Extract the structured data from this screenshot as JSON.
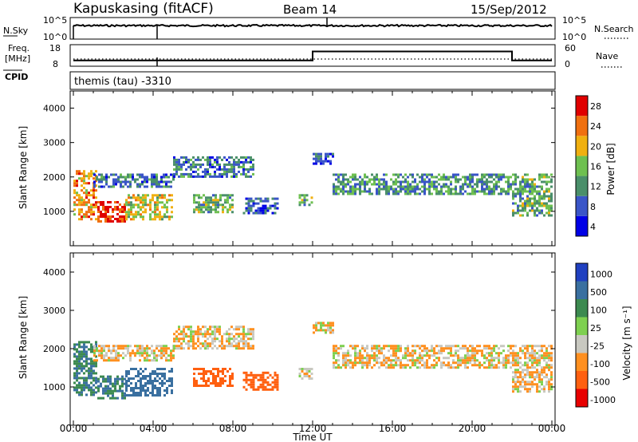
{
  "header": {
    "station": "Kapuskasing (fitACF)",
    "beam": "Beam 14",
    "date": "15/Sep/2012"
  },
  "top_panels": {
    "nsky_label": "N.Sky",
    "nsky_ticks": [
      "10^5",
      "10^0"
    ],
    "nsearch_label": "N.Search",
    "nsearch_ticks": [
      "10^5",
      "10^0"
    ],
    "freq_label_1": "Freq.",
    "freq_label_2": "[MHz]",
    "freq_ticks": [
      "18",
      "8"
    ],
    "nave_label": "Nave",
    "nave_ticks": [
      "60",
      "0"
    ],
    "cpid_label": "CPID",
    "cpid_value": "themis (tau) -3310"
  },
  "x_axis": {
    "label": "Time UT",
    "ticks": [
      "00:00",
      "04:00",
      "08:00",
      "12:00",
      "16:00",
      "20:00",
      "00:00"
    ]
  },
  "power_panel": {
    "ylabel": "Slant Range [km]",
    "yticks": [
      "4000",
      "3000",
      "2000",
      "1000"
    ],
    "colorbar_label": "Power [dB]",
    "colorbar_ticks": [
      "28",
      "24",
      "20",
      "16",
      "12",
      "8",
      "4"
    ],
    "colors": [
      "#0000e6",
      "#3a55c8",
      "#4a8f6a",
      "#6ec050",
      "#f0b010",
      "#f07010",
      "#e00000"
    ]
  },
  "velocity_panel": {
    "ylabel": "Slant Range [km]",
    "yticks": [
      "4000",
      "3000",
      "2000",
      "1000"
    ],
    "colorbar_label": "Velocity [m s⁻¹]",
    "colorbar_ticks": [
      "1000",
      "500",
      "100",
      "25",
      "-25",
      "-100",
      "-500",
      "-1000"
    ],
    "colors": [
      "#2040c0",
      "#3a70a0",
      "#3c8a50",
      "#7ed050",
      "#c8c8c0",
      "#ff9020",
      "#ff6010",
      "#e80000"
    ]
  },
  "chart_data": {
    "type": "heatmap",
    "title": "Kapuskasing (fitACF)",
    "xlabel": "Time UT",
    "ylabel": "Slant Range [km]",
    "xlim": [
      "00:00",
      "24:00"
    ],
    "ylim": [
      0,
      4500
    ],
    "frequency_mhz": [
      {
        "t": 0,
        "f": 10.5
      },
      {
        "t": 12,
        "f": 10.5
      },
      {
        "t": 12,
        "f": 15
      },
      {
        "t": 22,
        "f": 15
      },
      {
        "t": 22,
        "f": 10.5
      },
      {
        "t": 24,
        "f": 10.5
      }
    ],
    "echo_regions": [
      {
        "t_start": 0.0,
        "t_end": 1.2,
        "range_start": 800,
        "range_end": 2200,
        "power_db": 22,
        "velocity": 100
      },
      {
        "t_start": 1.2,
        "t_end": 2.6,
        "range_start": 700,
        "range_end": 1300,
        "power_db": 28,
        "velocity": 100
      },
      {
        "t_start": 2.6,
        "t_end": 5.0,
        "range_start": 800,
        "range_end": 1500,
        "power_db": 18,
        "velocity": 200
      },
      {
        "t_start": 1.0,
        "t_end": 5.0,
        "range_start": 1700,
        "range_end": 2100,
        "power_db": 10,
        "velocity": -25
      },
      {
        "t_start": 5.0,
        "t_end": 9.0,
        "range_start": 2000,
        "range_end": 2600,
        "power_db": 10,
        "velocity": -25
      },
      {
        "t_start": 6.0,
        "t_end": 8.0,
        "range_start": 1000,
        "range_end": 1500,
        "power_db": 14,
        "velocity": -300
      },
      {
        "t_start": 8.5,
        "t_end": 10.2,
        "range_start": 950,
        "range_end": 1400,
        "power_db": 8,
        "velocity": -300
      },
      {
        "t_start": 11.3,
        "t_end": 12.0,
        "range_start": 1200,
        "range_end": 1500,
        "power_db": 14,
        "velocity": -25
      },
      {
        "t_start": 12.0,
        "t_end": 13.0,
        "range_start": 2400,
        "range_end": 2700,
        "power_db": 8,
        "velocity": -25
      },
      {
        "t_start": 13.0,
        "t_end": 22.0,
        "range_start": 1500,
        "range_end": 2100,
        "power_db": 12,
        "velocity": -25
      },
      {
        "t_start": 22.0,
        "t_end": 24.0,
        "range_start": 900,
        "range_end": 2100,
        "power_db": 14,
        "velocity": -25
      }
    ]
  }
}
